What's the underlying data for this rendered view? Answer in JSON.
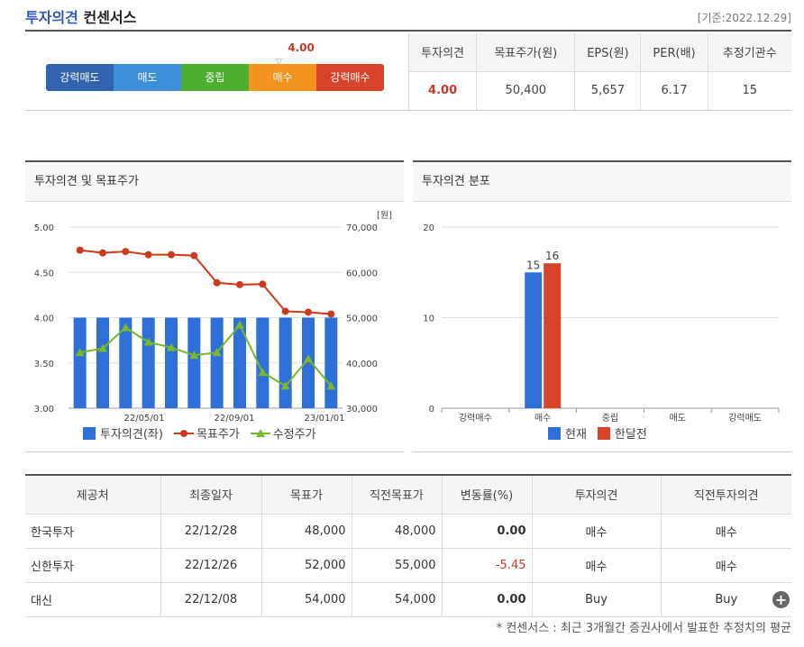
{
  "header": {
    "title_highlight": "투자의견",
    "title_rest": "컨센서스",
    "date": "[기준:2022.12.29]"
  },
  "summary": {
    "score": "4.00",
    "scale": [
      {
        "label": "강력매도",
        "color": "#3163ae"
      },
      {
        "label": "매도",
        "color": "#3d8fd9"
      },
      {
        "label": "중립",
        "color": "#4caf2f"
      },
      {
        "label": "매수",
        "color": "#f39320"
      },
      {
        "label": "강력매수",
        "color": "#d9432c"
      }
    ],
    "columns": [
      "투자의견",
      "목표주가(원)",
      "EPS(원)",
      "PER(배)",
      "추정기관수"
    ],
    "values": [
      "4.00",
      "50,400",
      "5,657",
      "6.17",
      "15"
    ]
  },
  "chart_left": {
    "title": "투자의견 및 목표주가",
    "unit": "[원]",
    "legend": [
      "투자의견(좌)",
      "목표주가",
      "수정주가"
    ]
  },
  "chart_right": {
    "title": "투자의견 분포",
    "legend": [
      "현재",
      "한달전"
    ]
  },
  "chart_data": [
    {
      "type": "bar",
      "title": "투자의견 및 목표주가",
      "x_ticks": [
        "22/05/01",
        "22/09/01",
        "23/01/01"
      ],
      "y_left": {
        "ticks": [
          "5.00",
          "4.50",
          "4.00",
          "3.50",
          "3.00"
        ],
        "range": [
          3.0,
          5.0
        ]
      },
      "y_right": {
        "label": "[원]",
        "ticks": [
          "70,000",
          "60,000",
          "50,000",
          "40,000",
          "30,000"
        ],
        "range": [
          30000,
          70000
        ]
      },
      "series": [
        {
          "name": "투자의견(좌)",
          "kind": "bar",
          "axis": "left",
          "color": "#2f6fd8",
          "values": [
            4.0,
            4.0,
            4.0,
            4.0,
            4.0,
            4.0,
            4.0,
            4.0,
            4.0,
            4.0,
            4.0,
            4.0
          ]
        },
        {
          "name": "목표주가",
          "kind": "line",
          "axis": "right",
          "color": "#cc3a1e",
          "values": [
            64900,
            64300,
            64600,
            63900,
            63900,
            63700,
            57700,
            57300,
            57400,
            51400,
            51200,
            50800
          ]
        },
        {
          "name": "수정주가",
          "kind": "line",
          "axis": "right",
          "color": "#78b82a",
          "values": [
            42300,
            43200,
            47800,
            44600,
            43400,
            41700,
            42300,
            48400,
            37900,
            34900,
            40900,
            34900
          ]
        }
      ]
    },
    {
      "type": "bar",
      "title": "투자의견 분포",
      "categories": [
        "강력매수",
        "매수",
        "중립",
        "매도",
        "강력매도"
      ],
      "ylim": [
        0,
        20
      ],
      "y_ticks": [
        "20",
        "10",
        "0"
      ],
      "series": [
        {
          "name": "현재",
          "color": "#2f6fd8",
          "values": [
            0,
            15,
            0,
            0,
            0
          ]
        },
        {
          "name": "한달전",
          "color": "#d9432c",
          "values": [
            0,
            16,
            0,
            0,
            0
          ]
        }
      ]
    }
  ],
  "firms": {
    "columns": [
      "제공처",
      "최종일자",
      "목표가",
      "직전목표가",
      "변동률(%)",
      "투자의견",
      "직전투자의견"
    ],
    "rows": [
      {
        "firm": "한국투자",
        "date": "22/12/28",
        "target": "48,000",
        "prev_target": "48,000",
        "change": "0.00",
        "opinion": "매수",
        "prev_opinion": "매수"
      },
      {
        "firm": "신한투자",
        "date": "22/12/26",
        "target": "52,000",
        "prev_target": "55,000",
        "change": "-5.45",
        "opinion": "매수",
        "prev_opinion": "매수"
      },
      {
        "firm": "대신",
        "date": "22/12/08",
        "target": "54,000",
        "prev_target": "54,000",
        "change": "0.00",
        "opinion": "Buy",
        "prev_opinion": "Buy"
      }
    ],
    "more_icon": "plus-circle-icon"
  },
  "footnote": "* 컨센서스 : 최근 3개월간 증권사에서 발표한 추정치의 평균"
}
